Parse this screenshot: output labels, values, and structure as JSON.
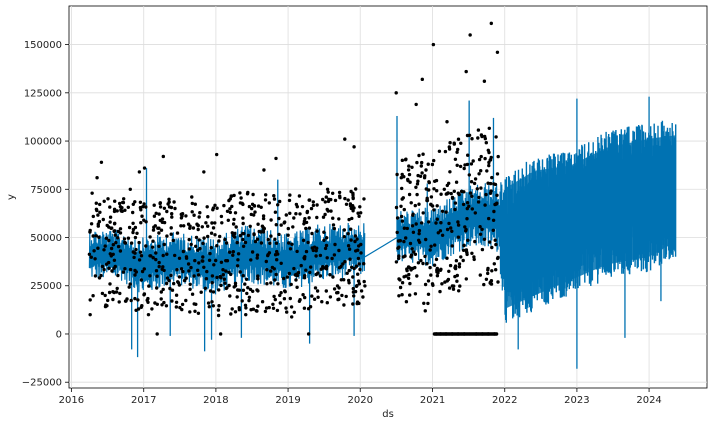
{
  "chart_data": {
    "type": "line",
    "xlabel": "ds",
    "ylabel": "y",
    "xlim": [
      "2015-12-20",
      "2024-10-20"
    ],
    "ylim": [
      -28000,
      170000
    ],
    "grid": true,
    "x_ticks": [
      {
        "date": "2016-01-01",
        "label": "2016"
      },
      {
        "date": "2017-01-01",
        "label": "2017"
      },
      {
        "date": "2018-01-01",
        "label": "2018"
      },
      {
        "date": "2019-01-01",
        "label": "2019"
      },
      {
        "date": "2020-01-01",
        "label": "2020"
      },
      {
        "date": "2021-01-01",
        "label": "2021"
      },
      {
        "date": "2022-01-01",
        "label": "2022"
      },
      {
        "date": "2023-01-01",
        "label": "2023"
      },
      {
        "date": "2024-01-01",
        "label": "2024"
      }
    ],
    "y_ticks": [
      {
        "value": -25000,
        "label": "−25000"
      },
      {
        "value": 0,
        "label": "0"
      },
      {
        "value": 25000,
        "label": "25000"
      },
      {
        "value": 50000,
        "label": "50000"
      },
      {
        "value": 75000,
        "label": "75000"
      },
      {
        "value": 100000,
        "label": "100000"
      },
      {
        "value": 125000,
        "label": "125000"
      },
      {
        "value": 150000,
        "label": "150000"
      }
    ],
    "series": [
      {
        "kind": "observed-points",
        "color": "#000000",
        "points": [
          [
            "2016-04-05",
            10000
          ],
          [
            "2016-04-15",
            73000
          ],
          [
            "2016-05-10",
            81000
          ],
          [
            "2016-06-01",
            89000
          ],
          [
            "2016-06-20",
            20000
          ],
          [
            "2016-07-15",
            58000
          ],
          [
            "2016-08-10",
            35000
          ],
          [
            "2016-09-05",
            66000
          ],
          [
            "2016-10-01",
            17000
          ],
          [
            "2016-10-25",
            75000
          ],
          [
            "2016-11-20",
            50000
          ],
          [
            "2016-12-10",
            84000
          ],
          [
            "2016-12-20",
            28000
          ],
          [
            "2017-01-05",
            86000
          ],
          [
            "2017-01-25",
            10000
          ],
          [
            "2017-02-15",
            45000
          ],
          [
            "2017-03-10",
            0
          ],
          [
            "2017-03-20",
            37000
          ],
          [
            "2017-04-10",
            92000
          ],
          [
            "2017-05-01",
            29000
          ],
          [
            "2017-05-20",
            55000
          ],
          [
            "2017-06-15",
            14000
          ],
          [
            "2017-07-10",
            62000
          ],
          [
            "2017-08-05",
            40000
          ],
          [
            "2017-09-01",
            71000
          ],
          [
            "2017-10-01",
            33000
          ],
          [
            "2017-11-01",
            84000
          ],
          [
            "2017-11-25",
            16000
          ],
          [
            "2017-12-20",
            55000
          ],
          [
            "2018-01-05",
            93000
          ],
          [
            "2018-01-25",
            0
          ],
          [
            "2018-02-20",
            38000
          ],
          [
            "2018-03-15",
            63000
          ],
          [
            "2018-04-10",
            25000
          ],
          [
            "2018-05-05",
            51000
          ],
          [
            "2018-06-01",
            10000
          ],
          [
            "2018-07-01",
            65000
          ],
          [
            "2018-08-01",
            30000
          ],
          [
            "2018-09-01",
            85000
          ],
          [
            "2018-10-01",
            47000
          ],
          [
            "2018-11-01",
            91000
          ],
          [
            "2018-11-20",
            20000
          ],
          [
            "2018-12-15",
            58000
          ],
          [
            "2019-01-10",
            72000
          ],
          [
            "2019-02-10",
            28000
          ],
          [
            "2019-03-15",
            66000
          ],
          [
            "2019-04-15",
            0
          ],
          [
            "2019-05-15",
            45000
          ],
          [
            "2019-06-15",
            78000
          ],
          [
            "2019-07-15",
            35000
          ],
          [
            "2019-08-15",
            60000
          ],
          [
            "2019-09-15",
            18000
          ],
          [
            "2019-10-15",
            101000
          ],
          [
            "2019-11-01",
            52000
          ],
          [
            "2019-12-01",
            97000
          ],
          [
            "2019-12-15",
            25000
          ],
          [
            "2020-01-05",
            42000
          ],
          [
            "2020-01-20",
            70000
          ],
          [
            "2020-07-01",
            125000
          ],
          [
            "2020-07-15",
            45000
          ],
          [
            "2020-08-01",
            90000
          ],
          [
            "2020-08-20",
            30000
          ],
          [
            "2020-09-15",
            68000
          ],
          [
            "2020-10-10",
            119000
          ],
          [
            "2020-10-25",
            52000
          ],
          [
            "2020-11-10",
            132000
          ],
          [
            "2020-11-25",
            12000
          ],
          [
            "2020-12-10",
            88000
          ],
          [
            "2021-01-05",
            150000
          ],
          [
            "2021-01-20",
            0
          ],
          [
            "2021-02-10",
            0
          ],
          [
            "2021-03-10",
            0
          ],
          [
            "2021-04-10",
            0
          ],
          [
            "2021-05-10",
            0
          ],
          [
            "2021-06-10",
            0
          ],
          [
            "2021-07-10",
            155000
          ],
          [
            "2021-08-10",
            0
          ],
          [
            "2021-09-10",
            0
          ],
          [
            "2021-10-10",
            0
          ],
          [
            "2021-10-25",
            161000
          ],
          [
            "2021-11-10",
            0
          ],
          [
            "2021-11-25",
            146000
          ],
          [
            "2021-06-20",
            136000
          ],
          [
            "2021-09-20",
            131000
          ],
          [
            "2021-03-15",
            110000
          ]
        ]
      },
      {
        "kind": "forecast-line",
        "color": "#0072B2",
        "points": [
          [
            "2016-04-01",
            40000
          ],
          [
            "2016-06-01",
            45000
          ],
          [
            "2016-09-01",
            42000
          ],
          [
            "2016-12-01",
            35000
          ],
          [
            "2017-03-01",
            37000
          ],
          [
            "2017-06-01",
            39000
          ],
          [
            "2017-09-01",
            41000
          ],
          [
            "2017-12-01",
            32000
          ],
          [
            "2018-03-01",
            39000
          ],
          [
            "2018-06-01",
            41000
          ],
          [
            "2018-09-01",
            44000
          ],
          [
            "2018-12-01",
            35000
          ],
          [
            "2019-03-01",
            40000
          ],
          [
            "2019-06-01",
            43000
          ],
          [
            "2019-09-01",
            44000
          ],
          [
            "2019-12-01",
            40000
          ],
          [
            "2020-01-25",
            46000
          ],
          [
            "2020-07-05",
            50000
          ],
          [
            "2020-10-01",
            52000
          ],
          [
            "2021-01-01",
            50000
          ],
          [
            "2021-04-01",
            57000
          ],
          [
            "2021-07-01",
            62000
          ],
          [
            "2021-10-01",
            63000
          ],
          [
            "2022-01-01",
            58000
          ],
          [
            "2022-04-01",
            55000
          ],
          [
            "2022-07-01",
            60000
          ],
          [
            "2022-10-01",
            62000
          ],
          [
            "2023-01-01",
            58000
          ],
          [
            "2023-04-01",
            64000
          ],
          [
            "2023-07-01",
            66000
          ],
          [
            "2023-10-01",
            69000
          ],
          [
            "2024-01-01",
            67000
          ],
          [
            "2024-05-15",
            72000
          ]
        ],
        "band": [
          [
            "2016-04-01",
            28000,
            55000
          ],
          [
            "2016-09-01",
            28000,
            54000
          ],
          [
            "2017-01-01",
            20000,
            50000
          ],
          [
            "2017-06-01",
            26000,
            53000
          ],
          [
            "2018-01-01",
            20000,
            50000
          ],
          [
            "2018-06-01",
            27000,
            57000
          ],
          [
            "2019-01-01",
            22000,
            52000
          ],
          [
            "2019-06-01",
            27000,
            57000
          ],
          [
            "2020-01-25",
            30000,
            58000
          ],
          [
            "2020-07-05",
            37000,
            64000
          ],
          [
            "2021-01-01",
            35000,
            66000
          ],
          [
            "2021-07-01",
            45000,
            77000
          ],
          [
            "2021-12-01",
            42000,
            80000
          ],
          [
            "2022-01-01",
            5000,
            82000
          ],
          [
            "2022-06-01",
            12000,
            92000
          ],
          [
            "2022-12-01",
            20000,
            95000
          ],
          [
            "2023-06-01",
            28000,
            105000
          ],
          [
            "2024-01-01",
            32000,
            110000
          ],
          [
            "2024-05-15",
            40000,
            112000
          ]
        ],
        "spikes": [
          [
            "2016-11-01",
            -8000
          ],
          [
            "2016-12-01",
            -12000
          ],
          [
            "2017-01-15",
            86000
          ],
          [
            "2017-05-15",
            -1000
          ],
          [
            "2017-11-05",
            -9000
          ],
          [
            "2017-12-10",
            -3000
          ],
          [
            "2018-05-10",
            -2000
          ],
          [
            "2018-11-10",
            80000
          ],
          [
            "2019-04-20",
            -5000
          ],
          [
            "2019-12-01",
            -1000
          ],
          [
            "2020-07-05",
            113000
          ],
          [
            "2020-12-05",
            78000
          ],
          [
            "2021-07-05",
            121000
          ],
          [
            "2021-11-05",
            112000
          ],
          [
            "2022-03-10",
            -8000
          ],
          [
            "2022-10-10",
            92000
          ],
          [
            "2023-01-01",
            -18000
          ],
          [
            "2023-01-01",
            122000
          ],
          [
            "2023-09-01",
            -2000
          ],
          [
            "2024-01-01",
            123000
          ],
          [
            "2024-03-01",
            17000
          ]
        ]
      }
    ]
  }
}
